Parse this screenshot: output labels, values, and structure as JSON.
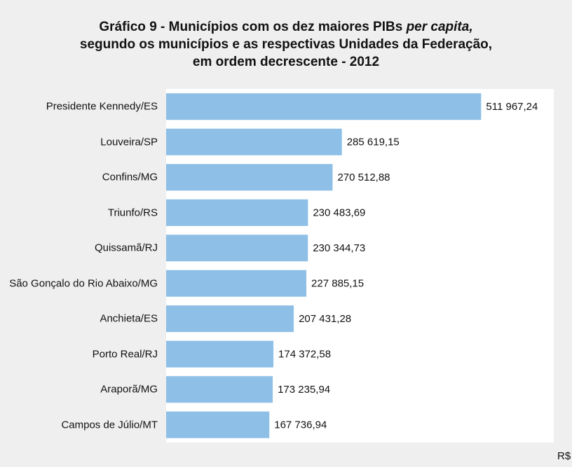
{
  "chart_data": {
    "type": "bar",
    "orientation": "horizontal",
    "title": [
      "Gráfico 9 - Municípios com os dez maiores PIBs",
      "per capita,",
      "segundo os municípios e as respectivas Unidades da Federação,",
      "em ordem decrescente - 2012"
    ],
    "categories": [
      "Presidente Kennedy/ES",
      "Louveira/SP",
      "Confins/MG",
      "Triunfo/RS",
      "Quissamã/RJ",
      "São Gonçalo do Rio Abaixo/MG",
      "Anchieta/ES",
      "Porto Real/RJ",
      "Araporã/MG",
      "Campos de Júlio/MT"
    ],
    "values": [
      511967.24,
      285619.15,
      270512.88,
      230483.69,
      230344.73,
      227885.15,
      207431.28,
      174372.58,
      173235.94,
      167736.94
    ],
    "value_labels": [
      "511 967,24",
      "285 619,15",
      "270 512,88",
      "230 483,69",
      "230 344,73",
      "227 885,15",
      "207 431,28",
      "174 372,58",
      "173 235,94",
      "167 736,94"
    ],
    "unit": "R$",
    "color": "#8ebfe7",
    "xlim": [
      0,
      630000
    ]
  }
}
